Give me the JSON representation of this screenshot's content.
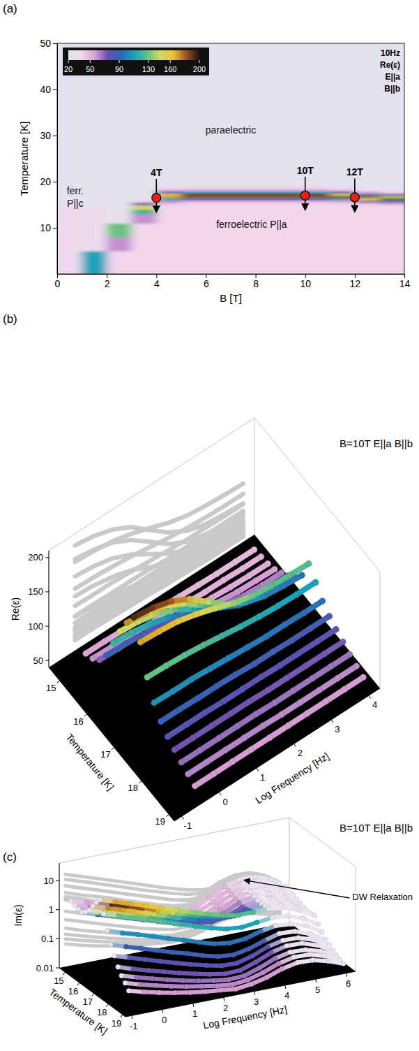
{
  "chart_data": [
    {
      "type": "heatmap",
      "panel": "(a)",
      "x_label": "B [T]",
      "y_label": "Temperature [K]",
      "xlim": [
        0,
        14
      ],
      "xticks": [
        0,
        2,
        4,
        6,
        8,
        10,
        12,
        14
      ],
      "ylim": [
        0,
        50
      ],
      "yticks": [
        10,
        20,
        30,
        40,
        50
      ],
      "x_edges": [
        0,
        1,
        2,
        3,
        4,
        5,
        6,
        7,
        8,
        9,
        10,
        11,
        12,
        13,
        14
      ],
      "y_edges": [
        0,
        5,
        8,
        11,
        13,
        14,
        15,
        15.5,
        16,
        16.5,
        17,
        17.5,
        18,
        18.5,
        19,
        20,
        22,
        26,
        32,
        40,
        50
      ],
      "z": [
        [
          35,
          110,
          38,
          38,
          38,
          38,
          38,
          38,
          38,
          38,
          38,
          38,
          38,
          38
        ],
        [
          35,
          33,
          60,
          38,
          38,
          38,
          38,
          38,
          38,
          38,
          38,
          38,
          38,
          38
        ],
        [
          35,
          33,
          130,
          38,
          38,
          38,
          38,
          38,
          38,
          38,
          38,
          38,
          38,
          38
        ],
        [
          35,
          33,
          27,
          60,
          38,
          38,
          38,
          38,
          38,
          38,
          38,
          38,
          38,
          38
        ],
        [
          35,
          33,
          26,
          120,
          38,
          38,
          38,
          38,
          38,
          38,
          38,
          38,
          38,
          38
        ],
        [
          35,
          33,
          26,
          150,
          38,
          38,
          38,
          38,
          38,
          38,
          38,
          38,
          38,
          38
        ],
        [
          26,
          26,
          26,
          80,
          45,
          38,
          38,
          38,
          38,
          38,
          38,
          38,
          45,
          55
        ],
        [
          26,
          26,
          26,
          40,
          60,
          50,
          50,
          50,
          50,
          50,
          50,
          55,
          70,
          100
        ],
        [
          26,
          26,
          26,
          26,
          110,
          90,
          90,
          90,
          90,
          90,
          90,
          110,
          150,
          185
        ],
        [
          26,
          26,
          26,
          26,
          170,
          180,
          180,
          180,
          180,
          180,
          180,
          185,
          180,
          140
        ],
        [
          26,
          26,
          26,
          26,
          160,
          190,
          190,
          190,
          190,
          190,
          190,
          150,
          100,
          70
        ],
        [
          26,
          26,
          26,
          26,
          90,
          110,
          110,
          110,
          110,
          110,
          110,
          80,
          55,
          40
        ],
        [
          26,
          26,
          26,
          26,
          50,
          55,
          55,
          55,
          55,
          55,
          55,
          45,
          35,
          30
        ],
        [
          26,
          26,
          26,
          26,
          32,
          35,
          35,
          35,
          35,
          35,
          35,
          30,
          28,
          26
        ],
        [
          26,
          26,
          26,
          26,
          26,
          26,
          26,
          26,
          26,
          26,
          26,
          26,
          26,
          26
        ],
        [
          26,
          26,
          26,
          26,
          26,
          26,
          26,
          26,
          26,
          26,
          26,
          26,
          26,
          26
        ],
        [
          26,
          26,
          26,
          26,
          26,
          26,
          26,
          26,
          26,
          26,
          26,
          26,
          26,
          26
        ],
        [
          26,
          26,
          26,
          26,
          26,
          26,
          26,
          26,
          26,
          26,
          26,
          26,
          26,
          26
        ],
        [
          26,
          26,
          26,
          26,
          26,
          26,
          26,
          26,
          26,
          26,
          26,
          26,
          26,
          26
        ],
        [
          26,
          26,
          26,
          26,
          26,
          26,
          26,
          26,
          26,
          26,
          26,
          26,
          26,
          26
        ]
      ],
      "zlim": [
        20,
        200
      ],
      "zticks": [
        20,
        50,
        90,
        130,
        160,
        200
      ],
      "info": [
        "10Hz",
        "Re(ε)",
        "E||a",
        "B||b"
      ],
      "annotations": [
        "paraelectric",
        "ferroelectric P||a",
        "ferr. P||c"
      ],
      "markers": {
        "x": [
          4,
          10,
          12
        ],
        "y": [
          16.5,
          17,
          16.6
        ],
        "labels": [
          "4T",
          "10T",
          "12T"
        ]
      }
    },
    {
      "type": "scatter3d",
      "panel": "(b)",
      "title": "B=10T E||a B||b",
      "x_label": "Temperature [K]",
      "z_label": "Log Frequency [Hz]",
      "y_label": "Re(ε)",
      "xlim": [
        14.6,
        19.2
      ],
      "xticks": [
        15,
        16,
        17,
        18,
        19
      ],
      "zlim": [
        -1.2,
        4.3
      ],
      "zticks": [
        -1,
        0,
        1,
        2,
        3,
        4
      ],
      "ylim": [
        40,
        210
      ],
      "yticks": [
        50,
        100,
        150,
        200
      ],
      "z": [
        -0.5,
        0,
        0.5,
        1,
        1.5,
        2,
        2.5,
        3,
        3.5,
        4
      ],
      "series": [
        {
          "x": 15,
          "values": [
            55,
            55,
            54,
            53,
            52,
            50,
            49,
            48,
            48,
            48
          ]
        },
        {
          "x": 15.25,
          "values": [
            60,
            59,
            59,
            57,
            55,
            53,
            51,
            51,
            50,
            50
          ]
        },
        {
          "x": 15.5,
          "values": [
            70,
            69,
            68,
            65,
            61,
            57,
            55,
            53,
            52,
            52
          ]
        },
        {
          "x": 15.75,
          "values": [
            89,
            88,
            85,
            80,
            73,
            66,
            61,
            58,
            57,
            56
          ]
        },
        {
          "x": 16,
          "values": [
            119,
            117,
            112,
            104,
            91,
            79,
            70,
            65,
            63,
            63
          ]
        },
        {
          "x": 16.25,
          "values": [
            148,
            145,
            139,
            127,
            110,
            93,
            81,
            75,
            72,
            71
          ]
        },
        {
          "x": 16.5,
          "values": [
            173,
            169,
            162,
            148,
            128,
            107,
            93,
            86,
            82,
            81
          ]
        },
        {
          "x": 16.75,
          "values": [
            193,
            189,
            181,
            167,
            145,
            124,
            109,
            101,
            98,
            96
          ]
        },
        {
          "x": 17,
          "values": [
            169,
            167,
            164,
            157,
            148,
            138,
            131,
            128,
            126,
            125
          ]
        },
        {
          "x": 17.25,
          "values": [
            130,
            129,
            127,
            124,
            120,
            116,
            113,
            111,
            110,
            110
          ]
        },
        {
          "x": 17.5,
          "values": [
            105,
            104,
            104,
            102,
            100,
            98,
            96,
            96,
            95,
            95
          ]
        },
        {
          "x": 17.75,
          "values": [
            90,
            90,
            89,
            89,
            88,
            86,
            86,
            85,
            85,
            85
          ]
        },
        {
          "x": 18,
          "values": [
            80,
            80,
            80,
            79,
            79,
            79,
            78,
            78,
            78,
            78
          ]
        },
        {
          "x": 18.25,
          "values": [
            73,
            73,
            73,
            73,
            73,
            72,
            72,
            72,
            72,
            72
          ]
        },
        {
          "x": 18.5,
          "values": [
            67,
            67,
            67,
            67,
            67,
            66,
            66,
            66,
            66,
            66
          ]
        },
        {
          "x": 18.75,
          "values": [
            62,
            62,
            62,
            62,
            62,
            61,
            61,
            61,
            61,
            61
          ]
        },
        {
          "x": 19,
          "values": [
            57,
            57,
            57,
            57,
            57,
            57,
            57,
            57,
            57,
            57
          ]
        }
      ]
    },
    {
      "type": "scatter3d",
      "panel": "(c)",
      "title": "B=10T E||a B||b",
      "x_label": "Temperature [K]",
      "z_label": "Log Frequency [Hz]",
      "y_label": "Im(ε)",
      "log": "y",
      "xlim": [
        14.6,
        19.2
      ],
      "xticks": [
        15,
        16,
        17,
        18,
        19
      ],
      "zlim": [
        -1.2,
        6.3
      ],
      "zticks": [
        -1,
        0,
        1,
        2,
        3,
        4,
        5,
        6
      ],
      "ylim": [
        0.01,
        40
      ],
      "yticks": [
        0.01,
        0.1,
        1,
        10
      ],
      "annotations": [
        "DW Relaxation"
      ],
      "z": [
        -1,
        -0.5,
        0,
        0.5,
        1,
        1.5,
        2,
        2.5,
        3,
        3.5,
        4,
        4.5,
        5,
        5.5,
        6
      ],
      "series": [
        {
          "x": 15,
          "values": [
            2.5,
            1.7,
            1.1,
            0.76,
            0.51,
            0.34,
            0.24,
            0.18,
            0.2,
            0.38,
            0.72,
            1.0,
            0.96,
            0.61,
            0.27
          ]
        },
        {
          "x": 15.25,
          "values": [
            2.2,
            1.5,
            0.99,
            0.67,
            0.45,
            0.3,
            0.21,
            0.16,
            0.18,
            0.34,
            0.65,
            0.91,
            0.86,
            0.55,
            0.24
          ]
        },
        {
          "x": 15.5,
          "values": [
            2.0,
            1.3,
            0.9,
            0.61,
            0.41,
            0.28,
            0.19,
            0.14,
            0.16,
            0.3,
            0.58,
            0.81,
            0.77,
            0.49,
            0.22
          ]
        },
        {
          "x": 15.75,
          "values": [
            2.0,
            1.3,
            0.9,
            0.61,
            0.41,
            0.28,
            0.19,
            0.14,
            0.15,
            0.27,
            0.51,
            0.71,
            0.68,
            0.43,
            0.19
          ]
        },
        {
          "x": 16,
          "values": [
            2.5,
            1.7,
            1.1,
            0.76,
            0.51,
            0.34,
            0.23,
            0.17,
            0.17,
            0.26,
            0.46,
            0.62,
            0.59,
            0.38,
            0.17
          ]
        },
        {
          "x": 16.25,
          "values": [
            3.5,
            2.3,
            1.6,
            1.1,
            0.71,
            0.48,
            0.32,
            0.23,
            0.2,
            0.25,
            0.41,
            0.54,
            0.5,
            0.32,
            0.15
          ]
        },
        {
          "x": 16.5,
          "values": [
            6.0,
            4.0,
            2.7,
            1.8,
            1.2,
            0.81,
            0.55,
            0.37,
            0.29,
            0.3,
            0.42,
            0.52,
            0.48,
            0.31,
            0.14
          ]
        },
        {
          "x": 16.75,
          "values": [
            10,
            6.7,
            4.5,
            3.0,
            2.0,
            1.3,
            0.9,
            0.61,
            0.45,
            0.39,
            0.46,
            0.52,
            0.46,
            0.3,
            0.14
          ]
        },
        {
          "x": 17,
          "values": [
            15,
            10,
            6.7,
            4.5,
            3.0,
            2.0,
            1.3,
            0.9,
            0.64,
            0.51,
            0.51,
            0.53,
            0.46,
            0.29,
            0.15
          ]
        },
        {
          "x": 17.25,
          "values": [
            6.0,
            4.0,
            2.7,
            1.8,
            1.2,
            0.81,
            0.54,
            0.37,
            0.27,
            0.24,
            0.28,
            0.32,
            0.29,
            0.19,
            0.093
          ]
        },
        {
          "x": 17.5,
          "values": [
            2.0,
            1.3,
            0.9,
            0.61,
            0.41,
            0.28,
            0.19,
            0.13,
            0.11,
            0.12,
            0.17,
            0.21,
            0.19,
            0.13,
            0.062
          ]
        },
        {
          "x": 17.75,
          "values": [
            0.81,
            0.54,
            0.37,
            0.25,
            0.17,
            0.12,
            0.081,
            0.059,
            0.053,
            0.067,
            0.1,
            0.14,
            0.13,
            0.085,
            0.042
          ]
        },
        {
          "x": 18,
          "values": [
            0.41,
            0.28,
            0.19,
            0.13,
            0.09,
            0.063,
            0.046,
            0.035,
            0.034,
            0.047,
            0.077,
            0.1,
            0.097,
            0.065,
            0.034
          ]
        },
        {
          "x": 18.25,
          "values": [
            0.21,
            0.14,
            0.099,
            0.07,
            0.05,
            0.037,
            0.028,
            0.023,
            0.024,
            0.036,
            0.06,
            0.08,
            0.077,
            0.052,
            0.028
          ]
        },
        {
          "x": 18.5,
          "values": [
            0.13,
            0.09,
            0.064,
            0.046,
            0.034,
            0.026,
            0.021,
            0.018,
            0.019,
            0.028,
            0.046,
            0.06,
            0.057,
            0.04,
            0.023
          ]
        },
        {
          "x": 18.75,
          "values": [
            0.09,
            0.063,
            0.046,
            0.034,
            0.026,
            0.021,
            0.017,
            0.015,
            0.017,
            0.024,
            0.038,
            0.05,
            0.048,
            0.034,
            0.02
          ]
        },
        {
          "x": 19,
          "values": [
            0.06,
            0.043,
            0.032,
            0.025,
            0.02,
            0.017,
            0.015,
            0.013,
            0.015,
            0.02,
            0.031,
            0.04,
            0.038,
            0.028,
            0.018
          ]
        }
      ]
    }
  ]
}
